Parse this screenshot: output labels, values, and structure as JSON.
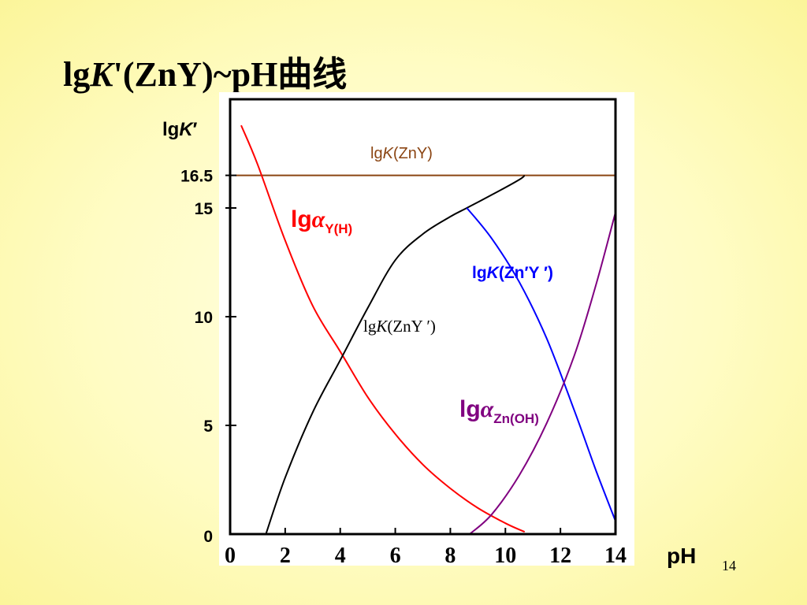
{
  "slide": {
    "title_prefix": "lg",
    "title_k": "K",
    "title_prime": "'",
    "title_suffix": "(ZnY)~pH曲线",
    "page_number": "14"
  },
  "chart_data": {
    "type": "line",
    "xlabel": "pH",
    "ylabel": "lgK′",
    "xlim": [
      0,
      14
    ],
    "ylim": [
      0,
      20
    ],
    "x_ticks": [
      0,
      2,
      4,
      6,
      8,
      10,
      12,
      14
    ],
    "y_ticks": [
      0,
      5,
      10,
      15,
      16.5
    ],
    "y_tick_labels": [
      "0",
      "5",
      "10",
      "15",
      "16.5"
    ],
    "grid": false,
    "series": [
      {
        "name": "lgK(ZnY)",
        "color": "#8b4513",
        "points": [
          [
            0.2,
            16.5
          ],
          [
            14,
            16.5
          ]
        ]
      },
      {
        "name": "lgαY(H)",
        "color": "#ff0000",
        "points": [
          [
            0.4,
            18.8
          ],
          [
            1,
            17
          ],
          [
            2,
            13.5
          ],
          [
            3,
            10.5
          ],
          [
            4,
            8.4
          ],
          [
            5,
            6.3
          ],
          [
            6,
            4.6
          ],
          [
            7,
            3.2
          ],
          [
            8,
            2.1
          ],
          [
            9,
            1.2
          ],
          [
            10,
            0.5
          ],
          [
            10.7,
            0.1
          ]
        ]
      },
      {
        "name": "lgK(ZnY′)",
        "color": "#000000",
        "points": [
          [
            1.3,
            0
          ],
          [
            2,
            2.6
          ],
          [
            3,
            5.6
          ],
          [
            4,
            8
          ],
          [
            5,
            10.4
          ],
          [
            6,
            12.6
          ],
          [
            7,
            13.8
          ],
          [
            8,
            14.6
          ],
          [
            8.6,
            15
          ],
          [
            9.5,
            15.6
          ],
          [
            10.5,
            16.3
          ],
          [
            10.7,
            16.5
          ]
        ]
      },
      {
        "name": "lgK(Zn′Y′)",
        "color": "#0000ff",
        "points": [
          [
            8.6,
            15
          ],
          [
            9.5,
            13.6
          ],
          [
            10.5,
            11.6
          ],
          [
            11.5,
            9
          ],
          [
            12.5,
            5.7
          ],
          [
            13.3,
            2.9
          ],
          [
            14,
            0.6
          ]
        ]
      },
      {
        "name": "lgαZn(OH)",
        "color": "#800080",
        "points": [
          [
            8.7,
            0
          ],
          [
            9.5,
            0.9
          ],
          [
            10.5,
            2.7
          ],
          [
            11.5,
            5.1
          ],
          [
            12.5,
            8.2
          ],
          [
            13.3,
            11.5
          ],
          [
            14,
            14.8
          ]
        ]
      }
    ]
  },
  "labels": {
    "ylabel_lg": "lg",
    "ylabel_k": "K",
    "ylabel_prime": "′",
    "zny_lg": "lg",
    "zny_k": "K",
    "zny_rest": "(ZnY)",
    "alphaY_lg": "lg",
    "alphaY_alpha": "α",
    "alphaY_sub": "Y(H)",
    "znPrimeYPrime_lg": "lg",
    "znPrimeYPrime_k": "K",
    "znPrimeYPrime_rest": "(Zn′Y ′)",
    "znYPrime_lg": "lg",
    "znYPrime_k": "K",
    "znYPrime_rest": "(ZnY ′)",
    "alphaZn_lg": "lg",
    "alphaZn_alpha": "α",
    "alphaZn_sub": "Zn(OH)"
  }
}
